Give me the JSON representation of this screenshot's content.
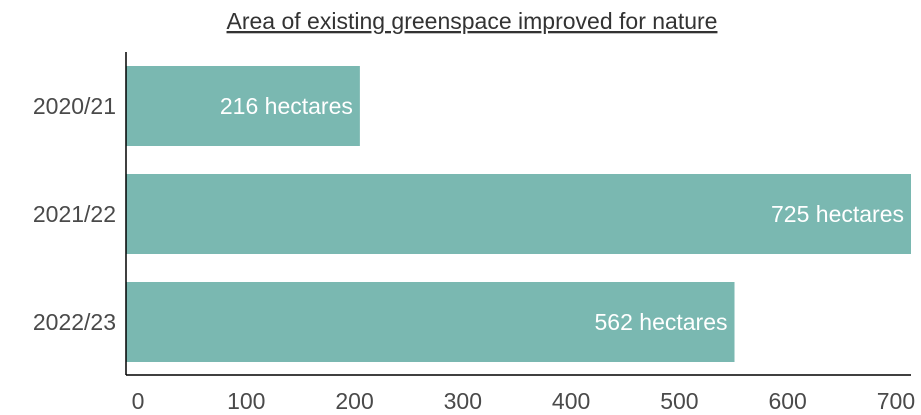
{
  "chart_data": {
    "type": "bar",
    "orientation": "horizontal",
    "title": "Area of existing greenspace improved for nature",
    "xlabel": "",
    "ylabel": "",
    "categories": [
      "2020/21",
      "2021/22",
      "2022/23"
    ],
    "values": [
      216,
      725,
      562
    ],
    "data_labels": [
      "216 hectares",
      "725 hectares",
      "562 hectares"
    ],
    "xlim": [
      0,
      725
    ],
    "xticks": [
      0,
      100,
      200,
      300,
      400,
      500,
      600,
      700
    ],
    "xtick_labels": [
      "0",
      "100",
      "200",
      "300",
      "400",
      "500",
      "600",
      "700"
    ],
    "grid": false,
    "legend": "none",
    "bar_color": "#7ab8b1"
  }
}
